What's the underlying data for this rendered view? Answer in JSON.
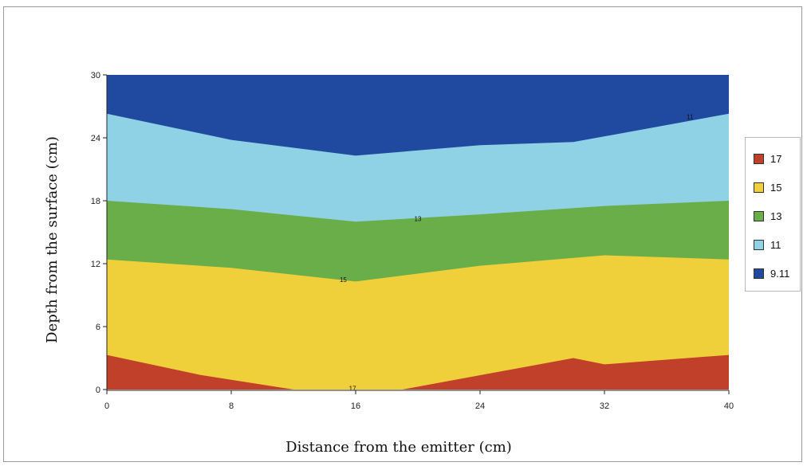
{
  "chart_data": {
    "type": "contour",
    "xlabel": "Distance from the emitter (cm)",
    "ylabel": "Depth from the surface (cm)",
    "xlim": [
      0,
      40
    ],
    "ylim": [
      0,
      30
    ],
    "x_ticks": [
      "0",
      "8",
      "16",
      "24",
      "32",
      "40"
    ],
    "y_ticks": [
      "0",
      "6",
      "12",
      "18",
      "24",
      "30"
    ],
    "grid": false,
    "legend_position": "right",
    "legend": [
      {
        "label": "17",
        "color": "#c0402a"
      },
      {
        "label": "15",
        "color": "#f0d03a"
      },
      {
        "label": "13",
        "color": "#6aae4a"
      },
      {
        "label": "11",
        "color": "#8fd2e6"
      },
      {
        "label": "9.11",
        "color": "#1f4aa0"
      }
    ],
    "bands": [
      {
        "level": "9.11",
        "color": "#1f4aa0",
        "lower_x": [
          0,
          8,
          16,
          24,
          30,
          40
        ],
        "lower_y": [
          26.3,
          23.8,
          22.3,
          23.3,
          23.6,
          26.3
        ]
      },
      {
        "level": "11",
        "color": "#8fd2e6",
        "lower_x": [
          0,
          8,
          16,
          24,
          32,
          40
        ],
        "lower_y": [
          18.0,
          17.2,
          16.0,
          16.7,
          17.5,
          18.0
        ]
      },
      {
        "level": "13",
        "color": "#6aae4a",
        "lower_x": [
          0,
          8,
          16,
          24,
          32,
          40
        ],
        "lower_y": [
          12.4,
          11.6,
          10.3,
          11.8,
          12.8,
          12.4
        ]
      },
      {
        "level": "15",
        "color": "#f0d03a",
        "lower_x": [
          0,
          6,
          12,
          19,
          30,
          32,
          40
        ],
        "lower_y": [
          3.3,
          1.4,
          0,
          0,
          3.0,
          2.4,
          3.3
        ]
      },
      {
        "level": "17",
        "color": "#c0402a",
        "lower_x": [
          0,
          40
        ],
        "lower_y": [
          0,
          0
        ]
      }
    ],
    "contour_labels": [
      {
        "text": "15",
        "x": 15.2,
        "y": 10.5
      },
      {
        "text": "13",
        "x": 20.0,
        "y": 16.3
      },
      {
        "text": "11",
        "x": 37.5,
        "y": 26.0
      },
      {
        "text": "17",
        "x": 15.8,
        "y": 0.1
      }
    ]
  }
}
